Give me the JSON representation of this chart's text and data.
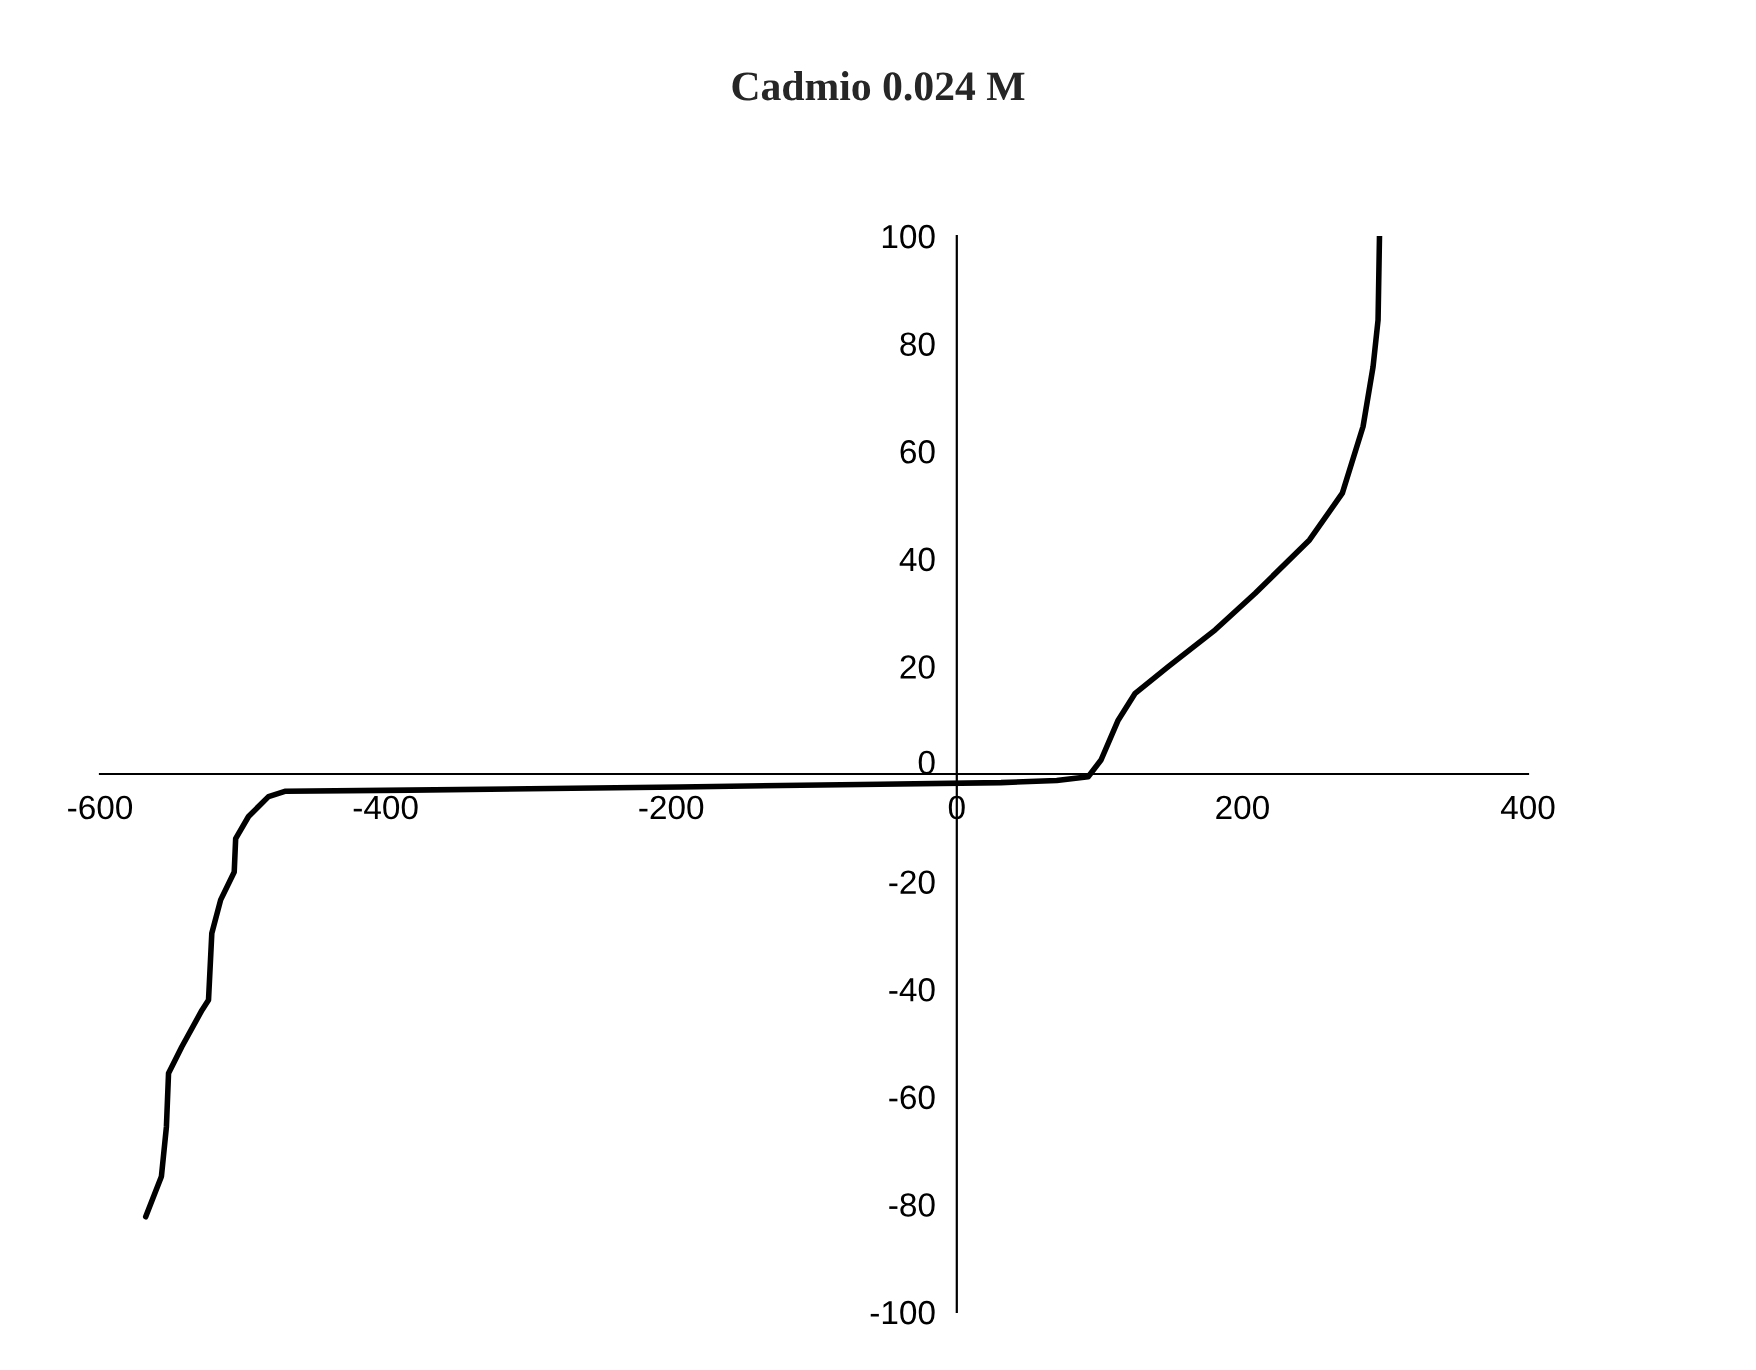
{
  "chart_data": {
    "type": "line",
    "title": "Cadmio 0.024 M",
    "x": [
      -568,
      -557,
      -553.5,
      -552,
      -542.7,
      -528.6,
      -524,
      -521.7,
      -515.5,
      -506,
      -505,
      -496,
      -482,
      -470,
      -383,
      -194,
      -53.5,
      31,
      70,
      92,
      101,
      113,
      124.9,
      148.3,
      181,
      209,
      247,
      270,
      284.5,
      291.5,
      295,
      296
    ],
    "series": [
      {
        "color": "#000000",
        "values": [
          -82.3,
          -74.8,
          -65.6,
          -55.6,
          -50.7,
          -43.9,
          -42,
          -29.6,
          -23.4,
          -18.2,
          -12,
          -7.9,
          -4.2,
          -3.2,
          -3.0,
          -2.4,
          -1.9,
          -1.6,
          -1.2,
          -0.5,
          2.6,
          10,
          15,
          20,
          26.8,
          33.6,
          43.5,
          52.2,
          64.6,
          75.7,
          84.4,
          100
        ]
      }
    ],
    "xlim": [
      -600,
      400
    ],
    "xticks": [
      -600,
      -400,
      -200,
      0,
      200,
      400
    ],
    "ylim": [
      -100,
      100
    ],
    "yticks": [
      -100,
      -80,
      -60,
      -40,
      -20,
      0,
      20,
      40,
      60,
      80,
      100
    ],
    "grid": false,
    "legend": false,
    "marker": "none",
    "line_style": "solid"
  }
}
